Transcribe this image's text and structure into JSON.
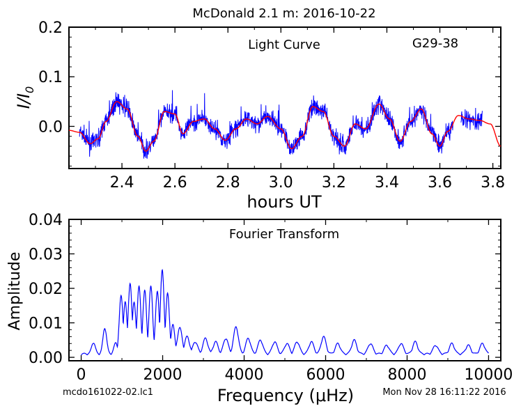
{
  "header": {
    "title": "McDonald 2.1 m:  2016-10-22",
    "footer_left": "mcdo161022-02.lc1",
    "footer_right": "Mon Nov 28 16:11:22 2016"
  },
  "chart_data": [
    {
      "type": "line",
      "panel": "top",
      "annotation": "Light Curve",
      "object": "G29-38",
      "xlabel": "hours UT",
      "ylabel": "I/I0",
      "xlim": [
        2.2,
        3.83
      ],
      "ylim": [
        -0.085,
        0.2
      ],
      "xticks": [
        2.4,
        2.6,
        2.8,
        3.0,
        3.2,
        3.4,
        3.6,
        3.8
      ],
      "xtick_labels": [
        "2.4",
        "2.6",
        "2.8",
        "3.0",
        "3.2",
        "3.4",
        "3.6",
        "3.8"
      ],
      "yticks": [
        0.0,
        0.1,
        0.2
      ],
      "ytick_labels": [
        "0.0",
        "0.1",
        "0.2"
      ],
      "series": [
        {
          "color": "#0000ff",
          "style": "noisy data",
          "segments": [
            [
              2.24,
              2.37
            ],
            [
              2.36,
              3.19
            ],
            [
              3.19,
              3.51
            ],
            [
              3.51,
              3.65
            ],
            [
              3.68,
              3.76
            ]
          ]
        },
        {
          "color": "#ff0000",
          "style": "smooth fit",
          "x": [
            2.2,
            2.24,
            2.28,
            2.31,
            2.34,
            2.38,
            2.42,
            2.46,
            2.49,
            2.52,
            2.56,
            2.6,
            2.63,
            2.67,
            2.71,
            2.75,
            2.79,
            2.83,
            2.87,
            2.91,
            2.95,
            3.0,
            3.04,
            3.08,
            3.12,
            3.16,
            3.2,
            3.24,
            3.28,
            3.32,
            3.37,
            3.41,
            3.45,
            3.49,
            3.53,
            3.57,
            3.6,
            3.63,
            3.67,
            3.71,
            3.75,
            3.79,
            3.83
          ],
          "y": [
            -0.008,
            -0.012,
            -0.035,
            -0.025,
            0.01,
            0.05,
            0.035,
            -0.02,
            -0.05,
            -0.03,
            0.03,
            0.025,
            -0.015,
            0.01,
            0.015,
            -0.005,
            -0.028,
            -0.005,
            0.015,
            0.005,
            0.02,
            -0.005,
            -0.045,
            -0.02,
            0.04,
            0.03,
            -0.02,
            -0.04,
            0.005,
            -0.005,
            0.045,
            0.015,
            -0.03,
            0.01,
            0.035,
            -0.015,
            -0.04,
            -0.01,
            0.022,
            0.015,
            0.012,
            0.005,
            -0.04
          ]
        }
      ]
    },
    {
      "type": "line",
      "panel": "bottom",
      "annotation": "Fourier Transform",
      "xlabel": "Frequency (μHz)",
      "ylabel": "Amplitude",
      "xlim": [
        -300,
        10300
      ],
      "ylim": [
        -0.001,
        0.04
      ],
      "xticks": [
        0,
        2000,
        4000,
        6000,
        8000,
        10000
      ],
      "xtick_labels": [
        "0",
        "2000",
        "4000",
        "6000",
        "8000",
        "10000"
      ],
      "yticks": [
        0.0,
        0.01,
        0.02,
        0.03,
        0.04
      ],
      "ytick_labels": [
        "0.00",
        "0.01",
        "0.02",
        "0.03",
        "0.04"
      ],
      "series": [
        {
          "color": "#0000ff",
          "peaks": [
            [
              300,
              0.0033
            ],
            [
              580,
              0.0075
            ],
            [
              850,
              0.0032
            ],
            [
              980,
              0.0168
            ],
            [
              1080,
              0.015
            ],
            [
              1200,
              0.0205
            ],
            [
              1300,
              0.015
            ],
            [
              1420,
              0.0195
            ],
            [
              1560,
              0.0183
            ],
            [
              1710,
              0.0195
            ],
            [
              1870,
              0.018
            ],
            [
              1990,
              0.0242
            ],
            [
              2120,
              0.0175
            ],
            [
              2250,
              0.0085
            ],
            [
              2420,
              0.0075
            ],
            [
              2600,
              0.005
            ],
            [
              2800,
              0.0035
            ],
            [
              3050,
              0.0045
            ],
            [
              3300,
              0.0035
            ],
            [
              3550,
              0.0045
            ],
            [
              3800,
              0.0078
            ],
            [
              4100,
              0.0045
            ],
            [
              4400,
              0.004
            ],
            [
              4750,
              0.0035
            ],
            [
              5050,
              0.003
            ],
            [
              5300,
              0.0035
            ],
            [
              5650,
              0.0035
            ],
            [
              5950,
              0.005
            ],
            [
              6300,
              0.003
            ],
            [
              6700,
              0.004
            ],
            [
              7100,
              0.003
            ],
            [
              7500,
              0.0025
            ],
            [
              7850,
              0.003
            ],
            [
              8200,
              0.0035
            ],
            [
              8700,
              0.0025
            ],
            [
              9100,
              0.003
            ],
            [
              9500,
              0.0025
            ],
            [
              9850,
              0.003
            ]
          ]
        }
      ]
    }
  ]
}
